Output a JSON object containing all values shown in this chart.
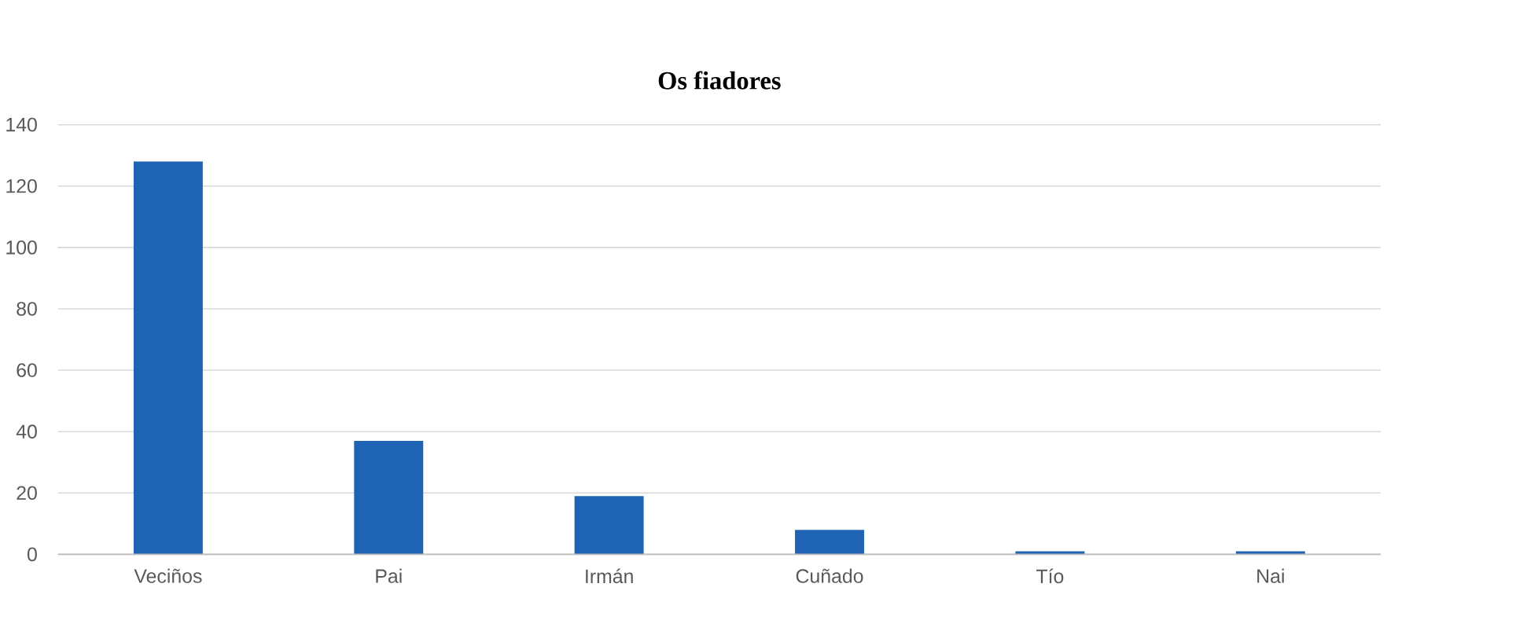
{
  "chart_data": {
    "type": "bar",
    "title": "Os fiadores",
    "categories": [
      "Veciños",
      "Pai",
      "Irmán",
      "Cuñado",
      "Tío",
      "Nai"
    ],
    "values": [
      128,
      37,
      19,
      8,
      1,
      1
    ],
    "color": "#1f64b4",
    "ylim": [
      0,
      140
    ],
    "yticks": [
      0,
      20,
      40,
      60,
      80,
      100,
      120,
      140
    ],
    "grid": "y"
  }
}
